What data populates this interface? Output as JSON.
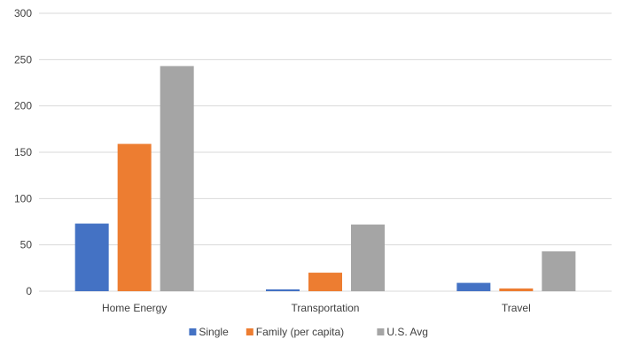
{
  "chart_data": {
    "type": "bar",
    "categories": [
      "Home Energy",
      "Transportation",
      "Travel"
    ],
    "series": [
      {
        "name": "Single",
        "color": "#4472c4",
        "values": [
          73,
          2,
          9
        ]
      },
      {
        "name": "Family (per capita)",
        "color": "#ed7d31",
        "values": [
          159,
          20,
          3
        ]
      },
      {
        "name": "U.S. Avg",
        "color": "#a5a5a5",
        "values": [
          243,
          72,
          43
        ]
      }
    ],
    "ylim": [
      0,
      300
    ],
    "yticks": [
      "0",
      "50",
      "100",
      "150",
      "200",
      "250",
      "300"
    ],
    "grid": true,
    "legend": "bottom"
  }
}
